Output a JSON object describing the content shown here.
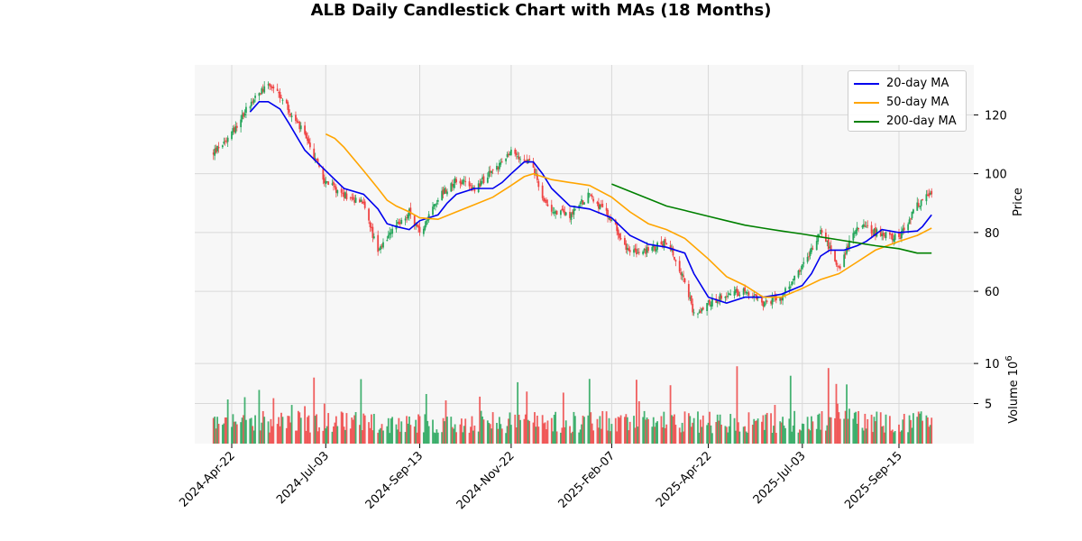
{
  "chart_data": {
    "type": "candlestick",
    "title": "ALB Daily Candlestick Chart with MAs (18 Months)",
    "price_panel": {
      "ylabel": "Price",
      "ylim": [
        45,
        137
      ],
      "yticks": [
        60,
        80,
        100,
        120
      ],
      "grid": true
    },
    "volume_panel": {
      "ylabel": "Volume  10^6",
      "ylim": [
        0,
        13.5
      ],
      "yticks": [
        5,
        10
      ],
      "grid": true
    },
    "x_ticks": [
      "2024-Apr-22",
      "2024-Jul-03",
      "2024-Sep-13",
      "2024-Nov-22",
      "2025-Feb-07",
      "2025-Apr-22",
      "2025-Jul-03",
      "2025-Sep-15"
    ],
    "x_range": [
      "2024-Apr-08",
      "2025-Oct-10"
    ],
    "legend_position": "top-right",
    "colors": {
      "up": "#26a65b",
      "down": "#ef4444",
      "ma20": "#0000ee",
      "ma50": "#ffa500",
      "ma200": "#008000"
    },
    "approx_close_path": [
      [
        "2024-Apr-08",
        107
      ],
      [
        "2024-Apr-22",
        114
      ],
      [
        "2024-May-06",
        124
      ],
      [
        "2024-May-20",
        131
      ],
      [
        "2024-Jun-03",
        123
      ],
      [
        "2024-Jun-17",
        113
      ],
      [
        "2024-Jul-03",
        97
      ],
      [
        "2024-Jul-17",
        93
      ],
      [
        "2024-Aug-01",
        90
      ],
      [
        "2024-Aug-12",
        73
      ],
      [
        "2024-Aug-26",
        82
      ],
      [
        "2024-Sep-05",
        87
      ],
      [
        "2024-Sep-13",
        80
      ],
      [
        "2024-Sep-27",
        92
      ],
      [
        "2024-Oct-11",
        98
      ],
      [
        "2024-Oct-25",
        95
      ],
      [
        "2024-Nov-08",
        101
      ],
      [
        "2024-Nov-22",
        107
      ],
      [
        "2024-Dec-06",
        105
      ],
      [
        "2024-Dec-20",
        88
      ],
      [
        "2025-Jan-06",
        86
      ],
      [
        "2025-Jan-21",
        93
      ],
      [
        "2025-Feb-07",
        84
      ],
      [
        "2025-Feb-21",
        73
      ],
      [
        "2025-Mar-07",
        74
      ],
      [
        "2025-Mar-21",
        77
      ],
      [
        "2025-Apr-04",
        64
      ],
      [
        "2025-Apr-11",
        52
      ],
      [
        "2025-Apr-22",
        56
      ],
      [
        "2025-May-06",
        59
      ],
      [
        "2025-May-20",
        60
      ],
      [
        "2025-Jun-03",
        56
      ],
      [
        "2025-Jun-17",
        58
      ],
      [
        "2025-Jul-03",
        68
      ],
      [
        "2025-Jul-17",
        81
      ],
      [
        "2025-Jul-31",
        68
      ],
      [
        "2025-Aug-14",
        83
      ],
      [
        "2025-Aug-28",
        80
      ],
      [
        "2025-Sep-15",
        78
      ],
      [
        "2025-Sep-29",
        89
      ],
      [
        "2025-Oct-10",
        94
      ]
    ],
    "series": [
      {
        "name": "20-day MA",
        "color": "#0000ee",
        "points": [
          [
            "2024-May-06",
            121
          ],
          [
            "2024-May-13",
            124.5
          ],
          [
            "2024-May-20",
            124.5
          ],
          [
            "2024-May-29",
            122
          ],
          [
            "2024-Jun-05",
            117
          ],
          [
            "2024-Jun-17",
            108
          ],
          [
            "2024-Jul-03",
            101
          ],
          [
            "2024-Jul-17",
            95
          ],
          [
            "2024-Aug-01",
            93
          ],
          [
            "2024-Aug-12",
            88
          ],
          [
            "2024-Aug-19",
            83
          ],
          [
            "2024-Aug-26",
            82
          ],
          [
            "2024-Sep-05",
            81
          ],
          [
            "2024-Sep-13",
            84
          ],
          [
            "2024-Sep-27",
            86
          ],
          [
            "2024-Oct-04",
            90
          ],
          [
            "2024-Oct-11",
            93
          ],
          [
            "2024-Oct-25",
            95
          ],
          [
            "2024-Nov-08",
            95
          ],
          [
            "2024-Nov-15",
            97
          ],
          [
            "2024-Nov-22",
            100
          ],
          [
            "2024-Dec-02",
            104
          ],
          [
            "2024-Dec-09",
            104
          ],
          [
            "2024-Dec-16",
            100
          ],
          [
            "2024-Dec-23",
            95
          ],
          [
            "2025-Jan-06",
            89
          ],
          [
            "2025-Jan-21",
            88
          ],
          [
            "2025-Feb-07",
            85
          ],
          [
            "2025-Feb-21",
            79
          ],
          [
            "2025-Mar-07",
            76
          ],
          [
            "2025-Mar-21",
            75
          ],
          [
            "2025-Apr-04",
            73
          ],
          [
            "2025-Apr-11",
            66
          ],
          [
            "2025-Apr-22",
            58
          ],
          [
            "2025-May-06",
            56
          ],
          [
            "2025-May-20",
            58
          ],
          [
            "2025-Jun-03",
            58
          ],
          [
            "2025-Jun-17",
            59
          ],
          [
            "2025-Jul-03",
            62
          ],
          [
            "2025-Jul-10",
            66
          ],
          [
            "2025-Jul-17",
            72
          ],
          [
            "2025-Jul-24",
            74
          ],
          [
            "2025-Aug-04",
            74
          ],
          [
            "2025-Aug-14",
            75.5
          ],
          [
            "2025-Aug-21",
            77
          ],
          [
            "2025-Sep-02",
            81
          ],
          [
            "2025-Sep-15",
            80
          ],
          [
            "2025-Sep-29",
            80.5
          ],
          [
            "2025-Oct-03",
            82
          ],
          [
            "2025-Oct-10",
            86
          ]
        ]
      },
      {
        "name": "50-day MA",
        "color": "#ffa500",
        "points": [
          [
            "2024-Jul-03",
            113.5
          ],
          [
            "2024-Jul-10",
            112
          ],
          [
            "2024-Jul-17",
            109
          ],
          [
            "2024-Aug-01",
            101
          ],
          [
            "2024-Aug-12",
            95
          ],
          [
            "2024-Aug-19",
            91
          ],
          [
            "2024-Aug-26",
            89
          ],
          [
            "2024-Sep-05",
            87
          ],
          [
            "2024-Sep-13",
            85
          ],
          [
            "2024-Sep-27",
            84.5
          ],
          [
            "2024-Oct-11",
            87
          ],
          [
            "2024-Oct-25",
            89.5
          ],
          [
            "2024-Nov-08",
            92
          ],
          [
            "2024-Nov-22",
            96
          ],
          [
            "2024-Dec-02",
            99
          ],
          [
            "2024-Dec-09",
            100
          ],
          [
            "2024-Dec-23",
            98
          ],
          [
            "2025-Jan-06",
            97
          ],
          [
            "2025-Jan-21",
            96
          ],
          [
            "2025-Feb-07",
            92
          ],
          [
            "2025-Feb-21",
            87
          ],
          [
            "2025-Mar-07",
            83
          ],
          [
            "2025-Mar-21",
            81
          ],
          [
            "2025-Apr-04",
            78
          ],
          [
            "2025-Apr-22",
            71
          ],
          [
            "2025-May-06",
            65
          ],
          [
            "2025-May-20",
            62
          ],
          [
            "2025-Jun-03",
            58
          ],
          [
            "2025-Jun-17",
            58
          ],
          [
            "2025-Jul-03",
            61
          ],
          [
            "2025-Jul-17",
            64
          ],
          [
            "2025-Jul-31",
            66
          ],
          [
            "2025-Aug-14",
            70
          ],
          [
            "2025-Aug-28",
            74
          ],
          [
            "2025-Sep-15",
            77
          ],
          [
            "2025-Sep-29",
            79
          ],
          [
            "2025-Oct-10",
            81.5
          ]
        ]
      },
      {
        "name": "200-day MA",
        "color": "#008000",
        "points": [
          [
            "2025-Feb-07",
            96.5
          ],
          [
            "2025-Feb-21",
            94
          ],
          [
            "2025-Mar-07",
            91.5
          ],
          [
            "2025-Mar-21",
            89
          ],
          [
            "2025-Apr-04",
            87.5
          ],
          [
            "2025-Apr-22",
            85.5
          ],
          [
            "2025-May-06",
            84
          ],
          [
            "2025-May-20",
            82.5
          ],
          [
            "2025-Jun-03",
            81.5
          ],
          [
            "2025-Jun-17",
            80.5
          ],
          [
            "2025-Jul-03",
            79.5
          ],
          [
            "2025-Jul-17",
            78.5
          ],
          [
            "2025-Jul-31",
            77.5
          ],
          [
            "2025-Aug-14",
            76.5
          ],
          [
            "2025-Aug-28",
            75.5
          ],
          [
            "2025-Sep-15",
            74.5
          ],
          [
            "2025-Sep-29",
            73
          ],
          [
            "2025-Oct-10",
            73
          ]
        ]
      }
    ]
  }
}
